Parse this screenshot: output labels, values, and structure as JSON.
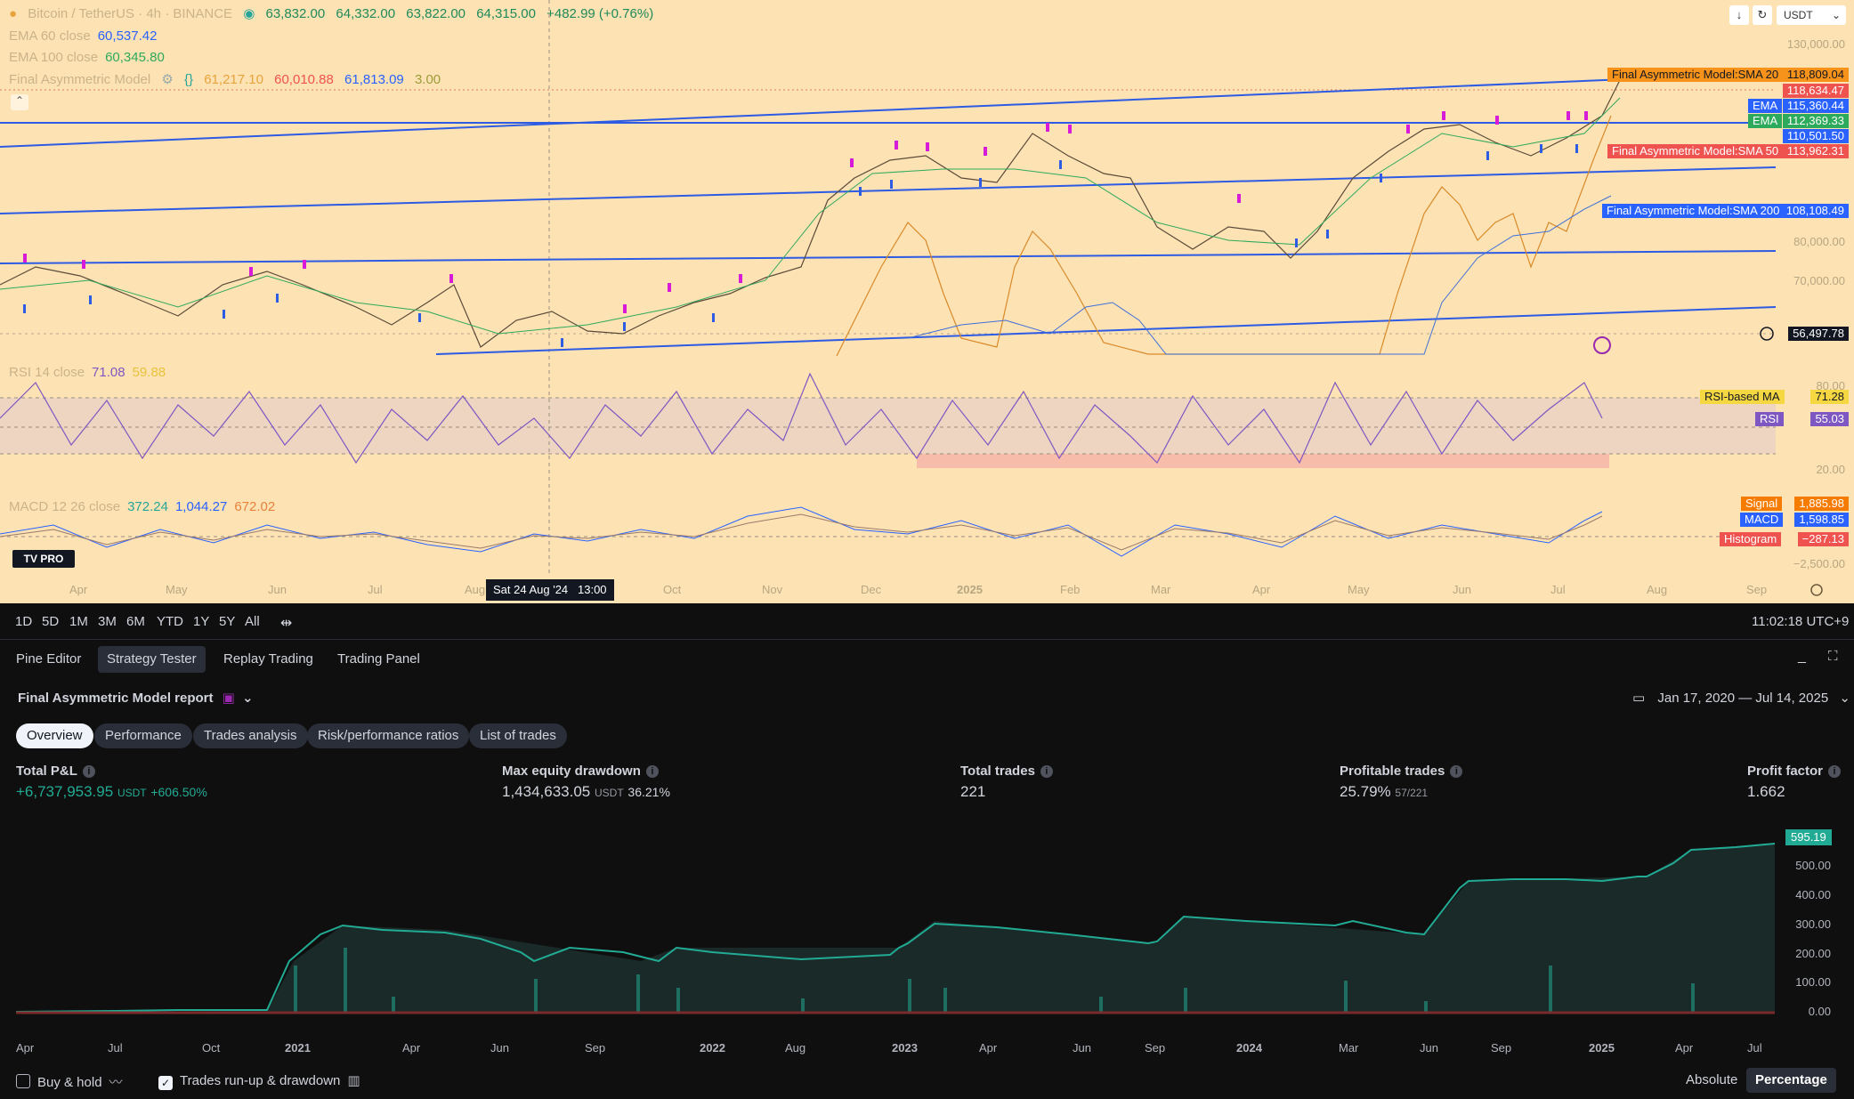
{
  "header": {
    "symbol": "Bitcoin / TetherUS · 4h · BINANCE",
    "open": "63,832.00",
    "high": "64,332.00",
    "low": "63,822.00",
    "close": "64,315.00",
    "change": "+482.99 (+0.76%)",
    "currency": "USDT"
  },
  "indicators": {
    "ema60_label": "EMA 60 close",
    "ema60_value": "60,537.42",
    "ema100_label": "EMA 100 close",
    "ema100_value": "60,345.80",
    "fam_label": "Final Asymmetric Model",
    "fam_v1": "61,217.10",
    "fam_v2": "60,010.88",
    "fam_v3": "61,813.09",
    "fam_v4": "3.00",
    "rsi_label": "RSI 14 close",
    "rsi_v1": "71.08",
    "rsi_v2": "59.88",
    "macd_label": "MACD 12 26 close",
    "macd_v1": "372.24",
    "macd_v2": "1,044.27",
    "macd_v3": "672.02"
  },
  "price_tags": {
    "sma20_label": "Final Asymmetric Model:SMA 20",
    "sma20_value": "118,809.04",
    "last_price": "118,634.47",
    "ema_label": "EMA",
    "ema1_value": "115,360.44",
    "ema2_value": "112,369.33",
    "blue_value": "110,501.50",
    "sma50_label": "Final Asymmetric Model:SMA 50",
    "sma50_value": "113,962.31",
    "sma200_label": "Final Asymmetric Model:SMA 200",
    "sma200_value": "108,108.49",
    "cursor_price": "56,497.78",
    "rsi_ma_label": "RSI-based MA",
    "rsi_ma_value": "71.28",
    "rsi_label": "RSI",
    "rsi_value": "55.03",
    "signal_label": "Signal",
    "signal_value": "1,885.98",
    "macd_label": "MACD",
    "macd_value": "1,598.85",
    "hist_label": "Histogram",
    "hist_value": "−287.13"
  },
  "price_axis": [
    "130,000.00",
    "80,000.00",
    "70,000.00",
    "80.00",
    "20.00",
    "−2,500.00"
  ],
  "time_axis": [
    "Apr",
    "May",
    "Jun",
    "Jul",
    "Aug",
    "Oct",
    "Nov",
    "Dec",
    "2025",
    "Feb",
    "Mar",
    "Apr",
    "May",
    "Jun",
    "Jul",
    "Aug",
    "Sep"
  ],
  "crosshair_date": "Sat 24 Aug '24   13:00",
  "timeframes": [
    "1D",
    "5D",
    "1M",
    "3M",
    "6M",
    "YTD",
    "1Y",
    "5Y",
    "All"
  ],
  "clock": "11:02:18 UTC+9",
  "panel_tabs": [
    "Pine Editor",
    "Strategy Tester",
    "Replay Trading",
    "Trading Panel"
  ],
  "report": {
    "title": "Final Asymmetric Model report",
    "date_range": "Jan 17, 2020 — Jul 14, 2025",
    "subtabs": [
      "Overview",
      "Performance",
      "Trades analysis",
      "Risk/performance ratios",
      "List of trades"
    ]
  },
  "stats": {
    "pnl_label": "Total P&L",
    "pnl_value": "+6,737,953.95",
    "pnl_unit": "USDT",
    "pnl_pct": "+606.50%",
    "dd_label": "Max equity drawdown",
    "dd_value": "1,434,633.05",
    "dd_unit": "USDT",
    "dd_pct": "36.21%",
    "trades_label": "Total trades",
    "trades_value": "221",
    "profitable_label": "Profitable trades",
    "profitable_value": "25.79%",
    "profitable_ratio": "57/221",
    "pf_label": "Profit factor",
    "pf_value": "1.662"
  },
  "equity": {
    "last_value": "595.19",
    "y_labels": [
      "500.00",
      "400.00",
      "300.00",
      "200.00",
      "100.00",
      "0.00"
    ],
    "x_labels": [
      "Apr",
      "Jul",
      "Oct",
      "2021",
      "Apr",
      "Jun",
      "Sep",
      "2022",
      "Aug",
      "2023",
      "Apr",
      "Jun",
      "Sep",
      "2024",
      "Mar",
      "Jun",
      "Sep",
      "2025",
      "Apr",
      "Jul"
    ]
  },
  "footer": {
    "buy_hold": "Buy & hold",
    "runup": "Trades run-up & drawdown",
    "absolute": "Absolute",
    "percentage": "Percentage"
  },
  "colors": {
    "chart_bg": "#fde2b3",
    "panel_bg": "#0f0f0f",
    "up": "#26a69a",
    "down": "#ef5350",
    "trend": "#2962ff",
    "equity": "#22ab94"
  }
}
